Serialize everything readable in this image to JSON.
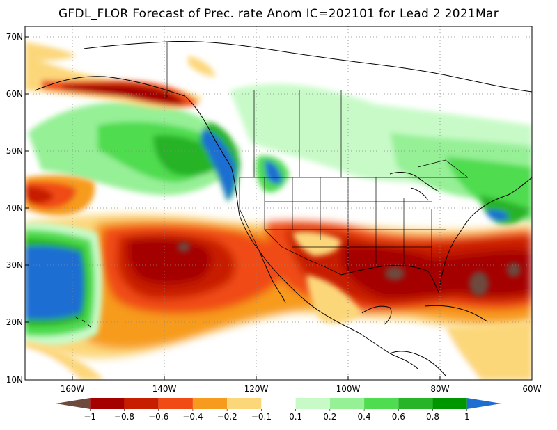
{
  "title": "GFDL_FLOR Forecast of Prec. rate Anom IC=202101 for Lead 2 2021Mar",
  "lat_labels": [
    "70N",
    "60N",
    "50N",
    "40N",
    "30N",
    "20N",
    "10N"
  ],
  "lon_labels": [
    "160W",
    "140W",
    "120W",
    "100W",
    "80W",
    "60W"
  ],
  "colorbar": {
    "labels": [
      "−1",
      "−0.8",
      "−0.6",
      "−0.4",
      "−0.2",
      "−0.1",
      "0.1",
      "0.2",
      "0.4",
      "0.6",
      "0.8",
      "1"
    ],
    "colors": [
      "#6e4a3e",
      "#a50000",
      "#c81e00",
      "#f04b14",
      "#f79b1e",
      "#fcd77a",
      "#ffffff",
      "#c8fac8",
      "#96f096",
      "#50dc50",
      "#28b428",
      "#009600",
      "#1e6ed2"
    ]
  }
}
